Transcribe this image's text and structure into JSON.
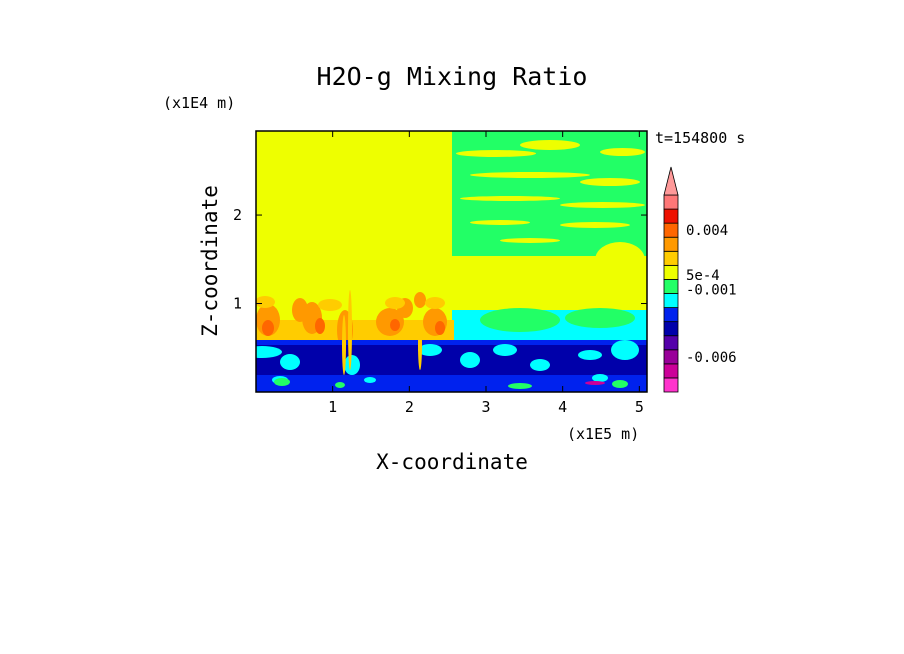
{
  "chart_data": {
    "type": "heatmap",
    "title": "H2O-g Mixing Ratio",
    "xlabel": "X-coordinate",
    "ylabel": "Z-coordinate",
    "x_unit": "(x1E5 m)",
    "y_unit": "(x1E4 m)",
    "time_label": "t=154800 s",
    "xlim": [
      0,
      5.1
    ],
    "ylim": [
      0,
      2.95
    ],
    "x_ticks": [
      {
        "value": 1,
        "label": "1"
      },
      {
        "value": 2,
        "label": "2"
      },
      {
        "value": 3,
        "label": "3"
      },
      {
        "value": 4,
        "label": "4"
      },
      {
        "value": 5,
        "label": "5"
      }
    ],
    "y_ticks": [
      {
        "value": 1,
        "label": "1"
      },
      {
        "value": 2,
        "label": "2"
      }
    ],
    "colorbar": {
      "extend": "max",
      "levels": [
        {
          "color": "#ff33cc"
        },
        {
          "color": "#cc0099"
        },
        {
          "color": "#990099"
        },
        {
          "color": "#5500aa"
        },
        {
          "color": "#0000aa"
        },
        {
          "color": "#0022ee"
        },
        {
          "color": "#00ffff"
        },
        {
          "color": "#22ff66"
        },
        {
          "color": "#eeff00"
        },
        {
          "color": "#ffcc00"
        },
        {
          "color": "#ff9900"
        },
        {
          "color": "#ff6600"
        },
        {
          "color": "#ee1100"
        },
        {
          "color": "#ff7777"
        }
      ],
      "extend_color": "#ff9999",
      "labels": [
        {
          "text": "-0.006",
          "level": 2.5
        },
        {
          "text": "-0.001",
          "level": 7.3
        },
        {
          "text": "5e-4",
          "level": 8.3
        },
        {
          "text": "0.004",
          "level": 11.5
        }
      ]
    },
    "field_colors": {
      "yellow": "#eeff00",
      "green": "#22ff66",
      "cyan": "#00ffff",
      "blue": "#0022ee",
      "navy": "#0000aa",
      "lightorange": "#ffcc00",
      "orange": "#ff9900",
      "darkorange": "#ff6600",
      "magenta": "#cc0099"
    }
  }
}
